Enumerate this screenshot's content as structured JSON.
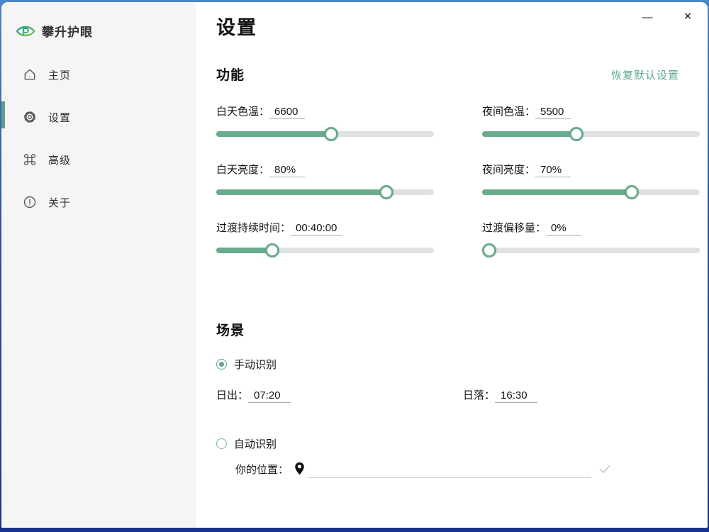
{
  "app": {
    "name": "攀升护眼",
    "logo_icon": "eye-logo"
  },
  "window_controls": {
    "minimize_label": "—",
    "close_label": "×"
  },
  "sidebar": {
    "items": [
      {
        "id": "home",
        "label": "主页",
        "icon": "home-icon",
        "active": false
      },
      {
        "id": "settings",
        "label": "设置",
        "icon": "gear-icon",
        "active": true
      },
      {
        "id": "advanced",
        "label": "高级",
        "icon": "command-icon",
        "active": false
      },
      {
        "id": "about",
        "label": "关于",
        "icon": "info-icon",
        "active": false
      }
    ]
  },
  "page": {
    "title": "设置"
  },
  "function_section": {
    "heading": "功能",
    "reset_link": "恢复默认设置",
    "sliders": [
      {
        "label": "白天色温：",
        "value": "6600",
        "percent": 53
      },
      {
        "label": "夜间色温：",
        "value": "5500",
        "percent": 43
      },
      {
        "label": "白天亮度：",
        "value": "80%",
        "percent": 80
      },
      {
        "label": "夜间亮度：",
        "value": "70%",
        "percent": 70
      },
      {
        "label": "过渡持续时间：",
        "value": "00:40:00",
        "percent": 24
      },
      {
        "label": "过渡偏移量：",
        "value": "0%",
        "percent": 0
      }
    ]
  },
  "scene_section": {
    "heading": "场景",
    "options": [
      {
        "label": "手动识别",
        "selected": true
      },
      {
        "label": "自动识别",
        "selected": false
      }
    ],
    "sunrise": {
      "label": "日出：",
      "value": "07:20"
    },
    "sunset": {
      "label": "日落：",
      "value": "16:30"
    },
    "location": {
      "label": "你的位置：",
      "value": "",
      "icon": "location-pin-icon",
      "status_icon": "check-icon"
    }
  },
  "colors": {
    "accent_green": "#5fa98a",
    "slider_fill": "#6aab8e",
    "slider_track": "#dfe1e3",
    "sidebar_bg": "#f5f5f6",
    "frame_top": "#4b86c6",
    "frame_bottom": "#16338f"
  }
}
